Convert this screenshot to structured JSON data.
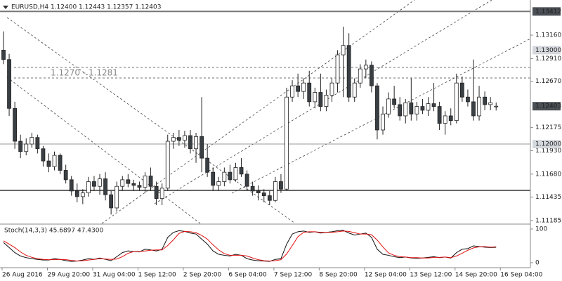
{
  "chart_data": [
    {
      "type": "candlestick",
      "title": "EURUSD,H4  1.12400 1.12443 1.12357 1.12403",
      "annotation": "1.1270 - 1.1281",
      "up_color": "#ffffff",
      "down_color": "#3a3f44",
      "wick_color": "#222222",
      "ylim": [
        1.11155,
        1.13534
      ],
      "yticks": [
        {
          "value": 1.1316,
          "label": "1.13160"
        },
        {
          "value": 1.1291,
          "label": "1.12910"
        },
        {
          "value": 1.1267,
          "label": "1.12670"
        },
        {
          "value": 1.12175,
          "label": "1.12175"
        },
        {
          "value": 1.1193,
          "label": "1.11930"
        },
        {
          "value": 1.1168,
          "label": "1.11680"
        },
        {
          "value": 1.11435,
          "label": "1.11435"
        },
        {
          "value": 1.11185,
          "label": "1.11185"
        }
      ],
      "levels": [
        {
          "value": 1.13412,
          "label": "1.13412",
          "color": "#4a4f55",
          "line": true
        },
        {
          "value": 1.13,
          "label": "1.13000",
          "color": "#d4d8dc",
          "line": false
        },
        {
          "value": 1.12,
          "label": "1.12000",
          "color": "#d4d8dc",
          "line": true
        },
        {
          "value": 1.12403,
          "label": "1.12403",
          "color": "#4a4f55",
          "line": false
        }
      ],
      "xticks": [
        {
          "value": 0,
          "label": "26 Aug 2016"
        },
        {
          "value": 8,
          "label": "29 Aug 20:00"
        },
        {
          "value": 16,
          "label": "31 Aug 04:00"
        },
        {
          "value": 24,
          "label": "1 Sep 12:00"
        },
        {
          "value": 32,
          "label": "2 Sep 20:00"
        },
        {
          "value": 40,
          "label": "6 Sep 04:00"
        },
        {
          "value": 48,
          "label": "7 Sep 12:00"
        },
        {
          "value": 56,
          "label": "8 Sep 20:00"
        },
        {
          "value": 64,
          "label": "12 Sep 04:00"
        },
        {
          "value": 72,
          "label": "13 Sep 12:00"
        },
        {
          "value": 80,
          "label": "14 Sep 20:00"
        },
        {
          "value": 88,
          "label": "16 Sep 04:00"
        }
      ],
      "open": [
        1.13,
        1.129,
        1.1238,
        1.1203,
        1.1192,
        1.12,
        1.1207,
        1.1195,
        1.1182,
        1.1176,
        1.1188,
        1.1172,
        1.1162,
        1.115,
        1.1144,
        1.1148,
        1.116,
        1.1155,
        1.1163,
        1.1146,
        1.1132,
        1.1155,
        1.1162,
        1.1158,
        1.1156,
        1.1154,
        1.1166,
        1.1155,
        1.1142,
        1.1153,
        1.1203,
        1.1207,
        1.1204,
        1.1209,
        1.1195,
        1.1208,
        1.1185,
        1.117,
        1.1156,
        1.116,
        1.117,
        1.1162,
        1.1175,
        1.1168,
        1.1155,
        1.115,
        1.1148,
        1.1145,
        1.114,
        1.116,
        1.1152,
        1.125,
        1.1262,
        1.1256,
        1.1265,
        1.1245,
        1.1255,
        1.124,
        1.1252,
        1.1265,
        1.1295,
        1.1305,
        1.125,
        1.1265,
        1.128,
        1.1284,
        1.1262,
        1.1215,
        1.1232,
        1.1248,
        1.1242,
        1.123,
        1.1244,
        1.1232,
        1.124,
        1.1236,
        1.1243,
        1.124,
        1.1222,
        1.123,
        1.1225,
        1.1265,
        1.125,
        1.1245,
        1.123,
        1.125,
        1.1242,
        1.124
      ],
      "high": [
        1.132,
        1.1296,
        1.1245,
        1.121,
        1.1206,
        1.1212,
        1.121,
        1.1198,
        1.119,
        1.1192,
        1.119,
        1.1178,
        1.1166,
        1.1158,
        1.1152,
        1.1165,
        1.1166,
        1.1168,
        1.117,
        1.115,
        1.116,
        1.1166,
        1.1168,
        1.1162,
        1.116,
        1.117,
        1.1175,
        1.116,
        1.1158,
        1.121,
        1.1212,
        1.1215,
        1.1214,
        1.1215,
        1.1212,
        1.125,
        1.12,
        1.1175,
        1.1165,
        1.1175,
        1.1178,
        1.118,
        1.1185,
        1.1172,
        1.116,
        1.1156,
        1.1152,
        1.115,
        1.1165,
        1.1168,
        1.126,
        1.1268,
        1.1275,
        1.127,
        1.1278,
        1.126,
        1.1275,
        1.1258,
        1.127,
        1.13,
        1.1325,
        1.1318,
        1.127,
        1.1285,
        1.129,
        1.1288,
        1.1265,
        1.124,
        1.1255,
        1.1262,
        1.125,
        1.1248,
        1.127,
        1.1245,
        1.1248,
        1.125,
        1.1265,
        1.1245,
        1.1235,
        1.1238,
        1.1275,
        1.1272,
        1.1258,
        1.129,
        1.1262,
        1.1256,
        1.125,
        1.12443
      ],
      "low": [
        1.1285,
        1.123,
        1.1195,
        1.1185,
        1.1188,
        1.1196,
        1.119,
        1.1176,
        1.117,
        1.1172,
        1.1168,
        1.1158,
        1.1145,
        1.1138,
        1.1136,
        1.1144,
        1.115,
        1.1146,
        1.114,
        1.1125,
        1.1128,
        1.115,
        1.1154,
        1.115,
        1.115,
        1.1148,
        1.115,
        1.1135,
        1.1135,
        1.115,
        1.1195,
        1.1198,
        1.1196,
        1.119,
        1.118,
        1.117,
        1.1165,
        1.115,
        1.115,
        1.1155,
        1.1158,
        1.116,
        1.1165,
        1.115,
        1.1145,
        1.114,
        1.1138,
        1.1135,
        1.1138,
        1.1148,
        1.115,
        1.1245,
        1.125,
        1.1248,
        1.124,
        1.1238,
        1.1235,
        1.1235,
        1.1245,
        1.1255,
        1.125,
        1.1245,
        1.1245,
        1.126,
        1.127,
        1.1255,
        1.1205,
        1.121,
        1.1228,
        1.1238,
        1.1225,
        1.1222,
        1.1225,
        1.1225,
        1.1232,
        1.123,
        1.1235,
        1.1215,
        1.121,
        1.122,
        1.1222,
        1.1245,
        1.124,
        1.1225,
        1.1225,
        1.1236,
        1.1236,
        1.12357
      ],
      "close": [
        1.129,
        1.1238,
        1.1203,
        1.1192,
        1.12,
        1.1207,
        1.1195,
        1.1182,
        1.1176,
        1.1188,
        1.1172,
        1.1162,
        1.115,
        1.1144,
        1.1148,
        1.116,
        1.1155,
        1.1163,
        1.1146,
        1.1132,
        1.1155,
        1.1162,
        1.1158,
        1.1156,
        1.1154,
        1.1166,
        1.1155,
        1.1142,
        1.1153,
        1.1203,
        1.1207,
        1.1204,
        1.1209,
        1.1195,
        1.1208,
        1.1185,
        1.117,
        1.1156,
        1.116,
        1.117,
        1.1162,
        1.1175,
        1.1168,
        1.1155,
        1.115,
        1.1148,
        1.1145,
        1.114,
        1.116,
        1.1152,
        1.125,
        1.1262,
        1.1256,
        1.1265,
        1.1245,
        1.1255,
        1.124,
        1.1252,
        1.1265,
        1.1295,
        1.1305,
        1.125,
        1.1265,
        1.128,
        1.1284,
        1.1262,
        1.1215,
        1.1232,
        1.1248,
        1.1242,
        1.123,
        1.1244,
        1.1232,
        1.124,
        1.1236,
        1.1243,
        1.124,
        1.1222,
        1.123,
        1.1225,
        1.1265,
        1.125,
        1.1245,
        1.123,
        1.125,
        1.1242,
        1.1244,
        1.12403
      ]
    },
    {
      "type": "line",
      "title": "Stoch(14,3,3) 45.6897 47.4300",
      "ylim": [
        -12.5,
        108.3
      ],
      "yticks": [
        0,
        100
      ],
      "series": [
        {
          "color": "#111111",
          "values": [
            60,
            45,
            30,
            20,
            15,
            12,
            10,
            8,
            8,
            12,
            10,
            6,
            4,
            5,
            8,
            12,
            10,
            14,
            10,
            6,
            18,
            30,
            35,
            33,
            32,
            40,
            38,
            35,
            40,
            75,
            90,
            95,
            93,
            88,
            85,
            70,
            55,
            35,
            25,
            22,
            20,
            25,
            22,
            12,
            8,
            6,
            5,
            4,
            10,
            12,
            55,
            85,
            92,
            94,
            90,
            92,
            88,
            90,
            92,
            95,
            96,
            88,
            82,
            85,
            88,
            75,
            40,
            25,
            22,
            18,
            15,
            17,
            14,
            13,
            14,
            16,
            18,
            15,
            17,
            14,
            30,
            40,
            42,
            50,
            48,
            46,
            45,
            45.6897
          ]
        },
        {
          "color": "#e01010",
          "values": [
            65,
            55,
            45,
            32,
            22,
            16,
            12,
            10,
            9,
            9,
            10,
            9,
            7,
            5,
            6,
            8,
            10,
            12,
            11,
            10,
            11,
            18,
            28,
            33,
            33,
            35,
            37,
            38,
            38,
            51,
            68,
            87,
            93,
            92,
            89,
            81,
            70,
            53,
            38,
            27,
            22,
            22,
            22,
            20,
            14,
            9,
            6,
            5,
            6,
            9,
            26,
            51,
            77,
            90,
            92,
            92,
            90,
            90,
            90,
            92,
            94,
            93,
            89,
            85,
            85,
            83,
            67,
            47,
            29,
            22,
            18,
            17,
            15,
            15,
            14,
            14,
            16,
            16,
            17,
            15,
            20,
            28,
            37,
            44,
            47,
            48,
            46,
            47.43
          ]
        }
      ]
    }
  ]
}
